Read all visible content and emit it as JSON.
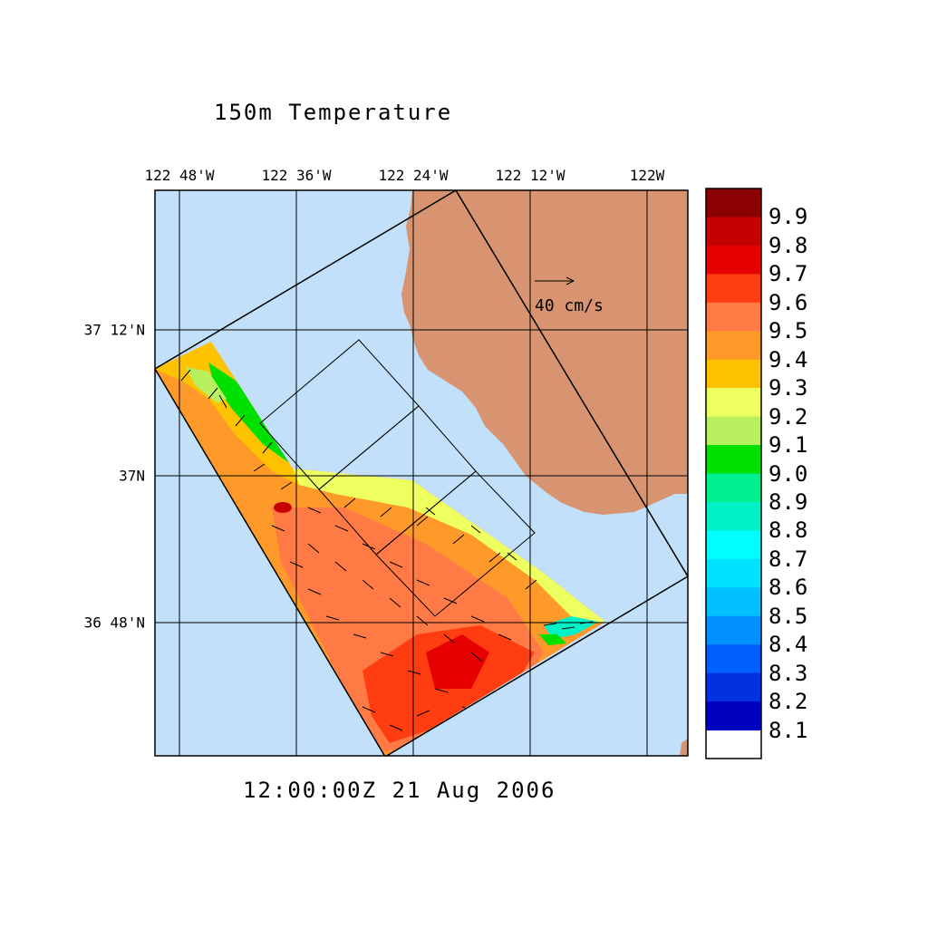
{
  "title": "150m Temperature",
  "timestamp": "12:00:00Z  21 Aug 2006",
  "lon_labels": [
    "122 48'W",
    "122 36'W",
    "122 24'W",
    "122 12'W",
    "122W"
  ],
  "lat_labels": [
    "37 12'N",
    "37N",
    "36 48'N"
  ],
  "vector_scale": {
    "label": "40 cm/s",
    "value_cm_s": 40
  },
  "colorbar": {
    "values": [
      "9.9",
      "9.8",
      "9.7",
      "9.6",
      "9.5",
      "9.4",
      "9.3",
      "9.2",
      "9.1",
      "9.0",
      "8.9",
      "8.8",
      "8.7",
      "8.6",
      "8.5",
      "8.4",
      "8.3",
      "8.2",
      "8.1"
    ],
    "colors": [
      "#8b0000",
      "#c40000",
      "#e60000",
      "#ff3d10",
      "#ff7a45",
      "#ff9a2a",
      "#ffc200",
      "#eeff60",
      "#b8f060",
      "#00e000",
      "#00f090",
      "#00f0c8",
      "#00ffff",
      "#00e0ff",
      "#00c0ff",
      "#0090ff",
      "#0060ff",
      "#0030e0",
      "#0000c0"
    ]
  },
  "colors": {
    "ocean": "#c2e0fa",
    "land": "#d89370",
    "grid": "#000000"
  }
}
